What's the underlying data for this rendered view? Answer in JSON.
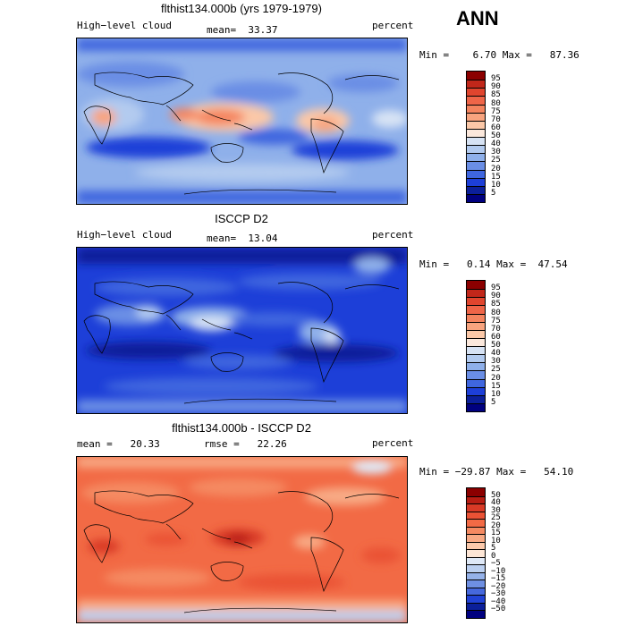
{
  "season": "ANN",
  "panels": [
    {
      "title": "flthist134.000b (yrs 1979-1979)",
      "left_text": "High−level cloud",
      "mid_text": "mean=  33.37",
      "unit": "percent",
      "minmax": "Min =    6.70 Max =   87.36",
      "legend_labels": [
        "95",
        "90",
        "85",
        "80",
        "75",
        "70",
        "60",
        "50",
        "40",
        "30",
        "25",
        "20",
        "15",
        "10",
        "5"
      ],
      "legend_colors": [
        "#8b0000",
        "#c1271a",
        "#e0452e",
        "#ef6548",
        "#f4845f",
        "#f8a47f",
        "#fbc8a8",
        "#fbe8dc",
        "#d7e3f4",
        "#b3cbef",
        "#8fb0ea",
        "#6a8ee5",
        "#3f66df",
        "#1d3fd8",
        "#0b1f9a",
        "#00007f"
      ]
    },
    {
      "title": "ISCCP D2",
      "left_text": "High−level cloud",
      "mid_text": "mean=  13.04",
      "unit": "percent",
      "minmax": "Min =   0.14 Max =  47.54",
      "legend_labels": [
        "95",
        "90",
        "85",
        "80",
        "75",
        "70",
        "60",
        "50",
        "40",
        "30",
        "25",
        "20",
        "15",
        "10",
        "5"
      ],
      "legend_colors": [
        "#8b0000",
        "#c1271a",
        "#e0452e",
        "#ef6548",
        "#f4845f",
        "#f8a47f",
        "#fbc8a8",
        "#fbe8dc",
        "#d7e3f4",
        "#b3cbef",
        "#8fb0ea",
        "#6a8ee5",
        "#3f66df",
        "#1d3fd8",
        "#0b1f9a",
        "#00007f"
      ]
    },
    {
      "title": "flthist134.000b - ISCCP D2",
      "left_text": "mean =   20.33",
      "mid_text": "rmse =   22.26",
      "unit": "percent",
      "minmax": "Min = −29.87 Max =   54.10",
      "legend_labels": [
        "50",
        "40",
        "30",
        "25",
        "20",
        "15",
        "10",
        "5",
        "0",
        "−5",
        "−10",
        "−15",
        "−20",
        "−30",
        "−40",
        "−50"
      ],
      "legend_colors": [
        "#8b0000",
        "#b81d13",
        "#d93a26",
        "#ea5235",
        "#f26a45",
        "#f58a62",
        "#f8aa85",
        "#fbc9ab",
        "#fde6d6",
        "#dfe9f7",
        "#bcd0f0",
        "#95b2e9",
        "#6e8fe2",
        "#4668dd",
        "#2142d6",
        "#0b1f9a",
        "#00007f"
      ]
    }
  ],
  "chart_data": [
    {
      "type": "heatmap",
      "title": "flthist134.000b (yrs 1979-1979)",
      "variable": "High−level cloud",
      "units": "percent",
      "mean": 33.37,
      "min": 6.7,
      "max": 87.36,
      "levels": [
        5,
        10,
        15,
        20,
        25,
        30,
        40,
        50,
        60,
        70,
        75,
        80,
        85,
        90,
        95
      ]
    },
    {
      "type": "heatmap",
      "title": "ISCCP D2",
      "variable": "High−level cloud",
      "units": "percent",
      "mean": 13.04,
      "min": 0.14,
      "max": 47.54,
      "levels": [
        5,
        10,
        15,
        20,
        25,
        30,
        40,
        50,
        60,
        70,
        75,
        80,
        85,
        90,
        95
      ]
    },
    {
      "type": "heatmap",
      "title": "flthist134.000b - ISCCP D2",
      "units": "percent",
      "mean": 20.33,
      "rmse": 22.26,
      "min": -29.87,
      "max": 54.1,
      "levels": [
        -50,
        -40,
        -30,
        -20,
        -15,
        -10,
        -5,
        0,
        5,
        10,
        15,
        20,
        25,
        30,
        40,
        50
      ]
    }
  ]
}
